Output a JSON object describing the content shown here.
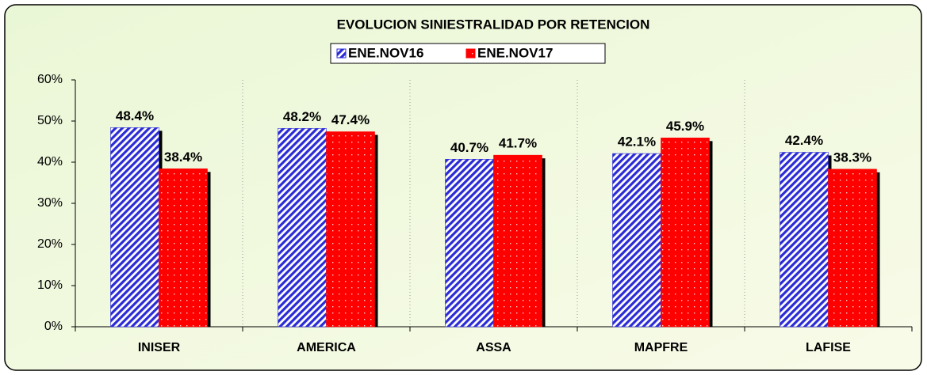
{
  "chart_data": {
    "type": "bar",
    "title": "EVOLUCION  SINIESTRALIDAD  POR RETENCION",
    "categories": [
      "INISER",
      "AMERICA",
      "ASSA",
      "MAPFRE",
      "LAFISE"
    ],
    "series": [
      {
        "name": "ENE.NOV16",
        "color": "#2b2bd6",
        "values": [
          48.4,
          48.2,
          40.7,
          42.1,
          42.4
        ],
        "value_labels": [
          "48.4%",
          "48.2%",
          "40.7%",
          "42.1%",
          "42.4%"
        ]
      },
      {
        "name": "ENE.NOV17",
        "color": "#ff0000",
        "values": [
          38.4,
          47.4,
          41.7,
          45.9,
          38.3
        ],
        "value_labels": [
          "38.4%",
          "47.4%",
          "41.7%",
          "45.9%",
          "38.3%"
        ]
      }
    ],
    "ylim": [
      0,
      60
    ],
    "yticks": [
      {
        "value": 0,
        "label": "0%"
      },
      {
        "value": 10,
        "label": "10%"
      },
      {
        "value": 20,
        "label": "20%"
      },
      {
        "value": 30,
        "label": "30%"
      },
      {
        "value": 40,
        "label": "40%"
      },
      {
        "value": 50,
        "label": "50%"
      },
      {
        "value": 60,
        "label": "60%"
      }
    ],
    "legend": "top"
  }
}
